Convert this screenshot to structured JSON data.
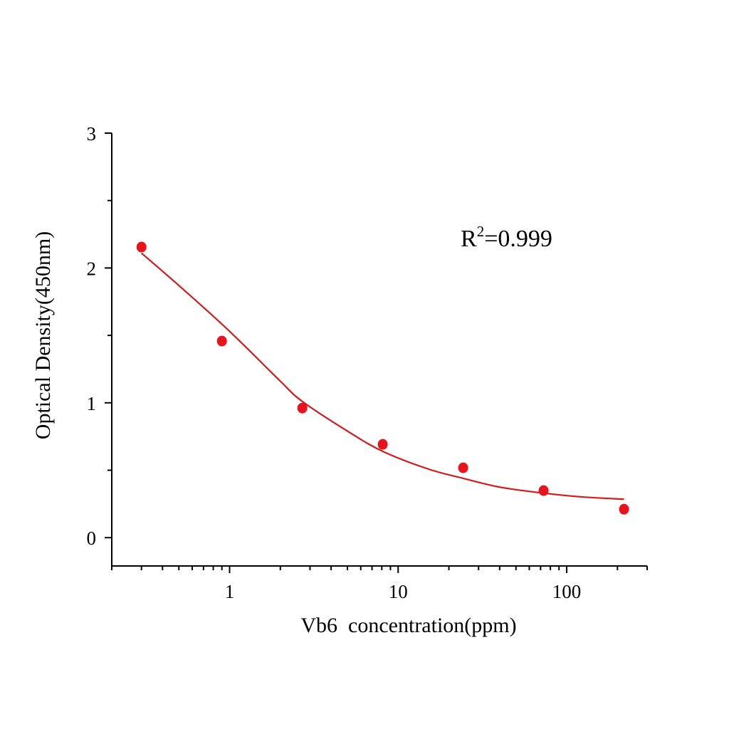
{
  "chart_data": {
    "type": "scatter",
    "title": "",
    "xlabel": "Vb6  concentration(ppm)",
    "ylabel": "Optical Density(450nm)",
    "x_scale": "log",
    "xlim": [
      0.2,
      300
    ],
    "ylim": [
      -0.21,
      3
    ],
    "x_ticks": [
      1,
      10,
      100
    ],
    "x_tick_labels": [
      "1",
      "10",
      "100"
    ],
    "y_ticks": [
      0,
      1,
      2,
      3
    ],
    "y_tick_labels": [
      "0",
      "1",
      "2",
      "3"
    ],
    "grid": false,
    "annotation": {
      "base": "R",
      "sup": "2",
      "rest": "=0.999"
    },
    "color": "#e8141c",
    "curve_color": "#d41a1a",
    "points": {
      "x": [
        0.3,
        0.9,
        2.7,
        8.1,
        24.3,
        72.9,
        218.7
      ],
      "y": [
        2.155,
        1.458,
        0.961,
        0.692,
        0.518,
        0.349,
        0.211
      ]
    },
    "fit_curve": {
      "x": [
        0.3,
        0.5,
        1,
        2,
        2.7,
        5,
        8.1,
        15,
        24.3,
        40,
        72.9,
        120,
        218.7
      ],
      "y": [
        2.11,
        1.87,
        1.53,
        1.16,
        1.01,
        0.79,
        0.64,
        0.51,
        0.44,
        0.375,
        0.33,
        0.303,
        0.285
      ]
    }
  }
}
